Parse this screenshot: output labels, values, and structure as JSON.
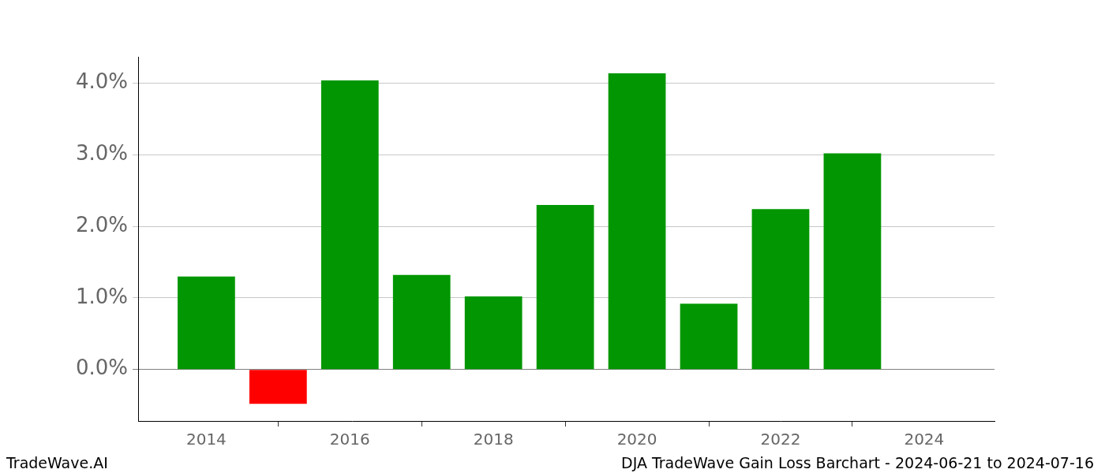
{
  "chart_data": {
    "type": "bar",
    "x": [
      2014,
      2015,
      2016,
      2017,
      2018,
      2019,
      2020,
      2021,
      2022,
      2023
    ],
    "values": [
      1.3,
      -0.48,
      4.04,
      1.32,
      1.02,
      2.3,
      4.14,
      0.92,
      2.24,
      3.02
    ],
    "colors": [
      "#029702",
      "#ff0000",
      "#029702",
      "#029702",
      "#029702",
      "#029702",
      "#029702",
      "#029702",
      "#029702",
      "#029702"
    ],
    "xlim": [
      2013.05,
      2024.98
    ],
    "xticks": [
      2014,
      2016,
      2018,
      2020,
      2022,
      2024
    ],
    "ylim": [
      -0.72,
      4.37
    ],
    "yticks": [
      {
        "value": 0,
        "label": "0.0%"
      },
      {
        "value": 1,
        "label": "1.0%"
      },
      {
        "value": 2,
        "label": "2.0%"
      },
      {
        "value": 3,
        "label": "3.0%"
      },
      {
        "value": 4,
        "label": "4.0%"
      }
    ],
    "grid": true,
    "annotations": [
      "TradeWave.AI",
      "DJA TradeWave Gain Loss Barchart - 2024-06-21 to 2024-07-16"
    ]
  }
}
